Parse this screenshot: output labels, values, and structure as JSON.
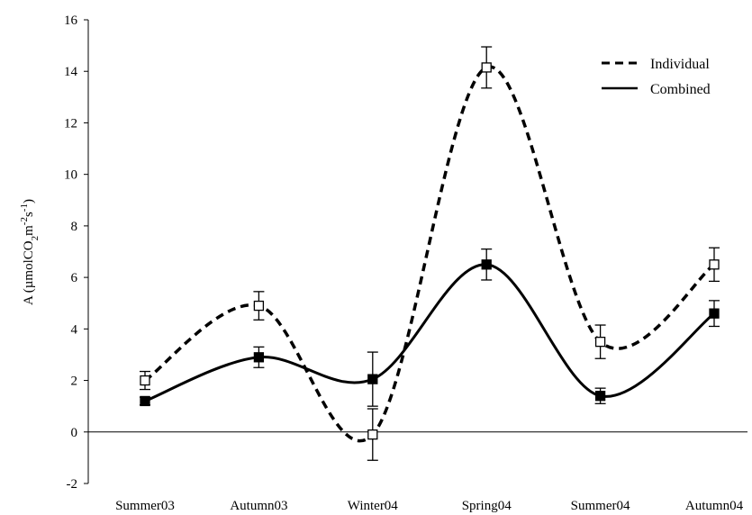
{
  "chart_data": {
    "type": "line",
    "categories": [
      "Summer03",
      "Autumn03",
      "Winter04",
      "Spring04",
      "Summer04",
      "Autumn04"
    ],
    "ylabel": {
      "prefix": "A (µmolCO",
      "sub": "2",
      "mid": "m",
      "sup1": "-2",
      "mid2": "s",
      "sup2": "-1",
      "suffix": ")"
    },
    "ylim": [
      -2,
      16
    ],
    "yticks": [
      -2,
      0,
      2,
      4,
      6,
      8,
      10,
      12,
      14,
      16
    ],
    "ytick_labels": [
      "-2",
      "0",
      "2",
      "4",
      "6",
      "8",
      "10",
      "12",
      "14",
      "16"
    ],
    "grid": false,
    "legend_placement": "top-right",
    "series": [
      {
        "name": "Individual",
        "line_style": "dashed",
        "marker": "open-square",
        "color": "#000000",
        "values": [
          2.0,
          4.9,
          -0.1,
          14.15,
          3.5,
          6.5
        ],
        "error": [
          0.35,
          0.55,
          1.0,
          0.8,
          0.65,
          0.65
        ]
      },
      {
        "name": "Combined",
        "line_style": "solid",
        "marker": "filled-square",
        "color": "#000000",
        "values": [
          1.2,
          2.9,
          2.05,
          6.5,
          1.4,
          4.6
        ],
        "error": [
          0.15,
          0.4,
          1.05,
          0.6,
          0.3,
          0.5
        ]
      }
    ]
  }
}
